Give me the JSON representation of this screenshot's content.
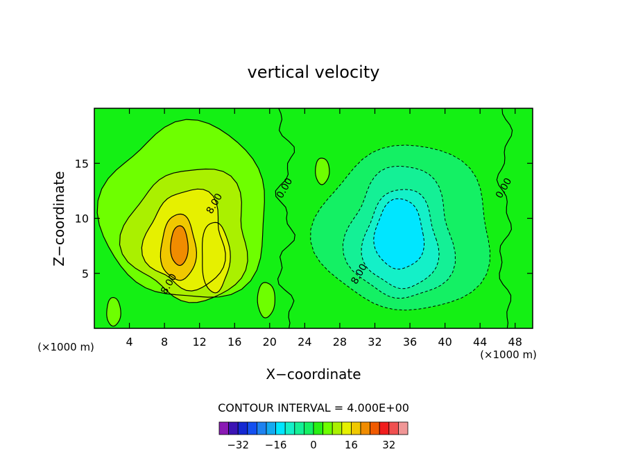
{
  "chart_data": {
    "type": "contour",
    "title": "vertical velocity",
    "xlabel": "X−coordinate",
    "ylabel": "Z−coordinate",
    "x_unit_left": "(×1000 m)",
    "x_unit_right": "(×1000 m)",
    "xlim": [
      0,
      50
    ],
    "ylim": [
      0,
      20
    ],
    "x_ticks": [
      4,
      8,
      12,
      16,
      20,
      24,
      28,
      32,
      36,
      40,
      44,
      48
    ],
    "y_ticks": [
      5,
      10,
      15
    ],
    "contour_interval_text": "CONTOUR INTERVAL = 4.000E+00",
    "contour_labels": [
      {
        "text": "8.00",
        "x": 14.0,
        "y": 11.2
      },
      {
        "text": "0.00",
        "x": 22.0,
        "y": 12.6
      },
      {
        "text": "8.00",
        "x": 8.8,
        "y": 3.9
      },
      {
        "text": "8.00",
        "x": 30.5,
        "y": 4.8
      },
      {
        "text": "0.00",
        "x": 47.0,
        "y": 12.6
      }
    ],
    "updrafts": [
      {
        "x": 9.8,
        "z": 7.0,
        "peak": 22
      },
      {
        "x": 14.0,
        "z": 6.0,
        "peak": 14
      },
      {
        "x": 12.0,
        "z": 10.5,
        "peak": 9
      },
      {
        "x": 11.5,
        "z": 9.0,
        "peak": 12
      }
    ],
    "downdrafts": [
      {
        "x": 35.0,
        "z": 8.5,
        "peak": -14
      },
      {
        "x": 36.5,
        "z": 4.0,
        "peak": -9
      },
      {
        "x": 33.0,
        "z": 11.0,
        "peak": -8
      }
    ],
    "colorbar": {
      "tick_labels": [
        "−32",
        "−16",
        "0",
        "16",
        "32"
      ],
      "tick_values": [
        -32,
        -16,
        0,
        16,
        32
      ],
      "bins": [
        -36,
        -32,
        -28,
        -24,
        -20,
        -16,
        -12,
        -8,
        -4,
        0,
        4,
        8,
        12,
        16,
        20,
        24,
        28,
        32,
        36
      ],
      "colors": [
        "#8a1ab4",
        "#3c14b4",
        "#1428d2",
        "#1450f0",
        "#1e82f0",
        "#14aaf0",
        "#00e6ff",
        "#14f0c8",
        "#14f096",
        "#14f064",
        "#28f014",
        "#6eff00",
        "#aaf000",
        "#e6f000",
        "#f0c800",
        "#f08c00",
        "#f05a00",
        "#f01e1e",
        "#f05050",
        "#f09696"
      ]
    }
  }
}
